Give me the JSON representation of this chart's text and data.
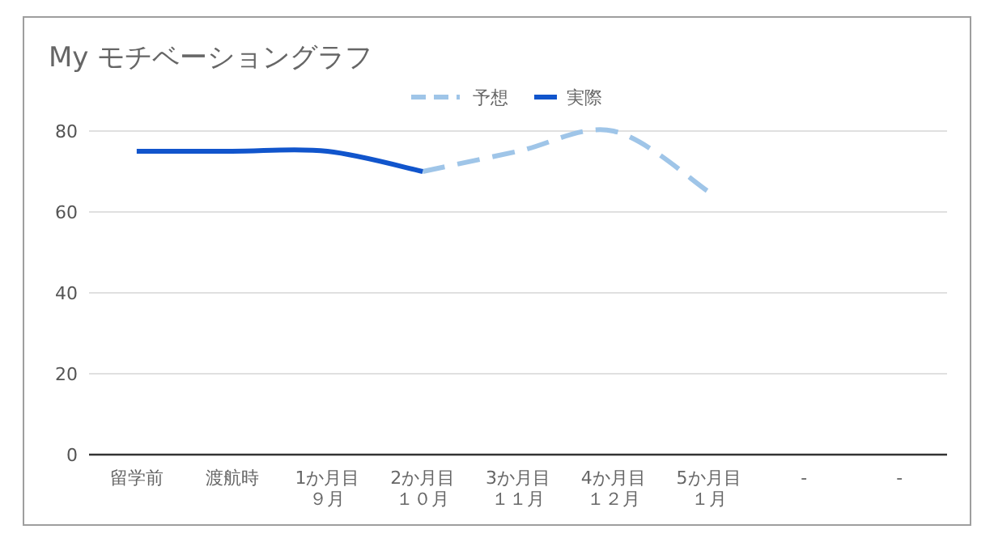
{
  "chart_data": {
    "type": "line",
    "title": "My モチベーショングラフ",
    "categories": [
      "留学前",
      "渡航時",
      "1か月目９月",
      "2か月目１０月",
      "3か月目１１月",
      "4か月目１２月",
      "5か月目１月",
      "-",
      "-"
    ],
    "series": [
      {
        "name": "予想",
        "color": "#9fc5e8",
        "line_style": "dashed",
        "values": [
          null,
          null,
          null,
          70,
          75,
          80,
          65,
          null,
          null
        ]
      },
      {
        "name": "実際",
        "color": "#1155cc",
        "line_style": "solid",
        "values": [
          75,
          75,
          75,
          70,
          null,
          null,
          null,
          null,
          null
        ]
      }
    ],
    "ylim": [
      0,
      80
    ],
    "yticks": [
      0,
      20,
      40,
      60,
      80
    ],
    "grid": "y",
    "legend": "top",
    "marker": "none"
  }
}
